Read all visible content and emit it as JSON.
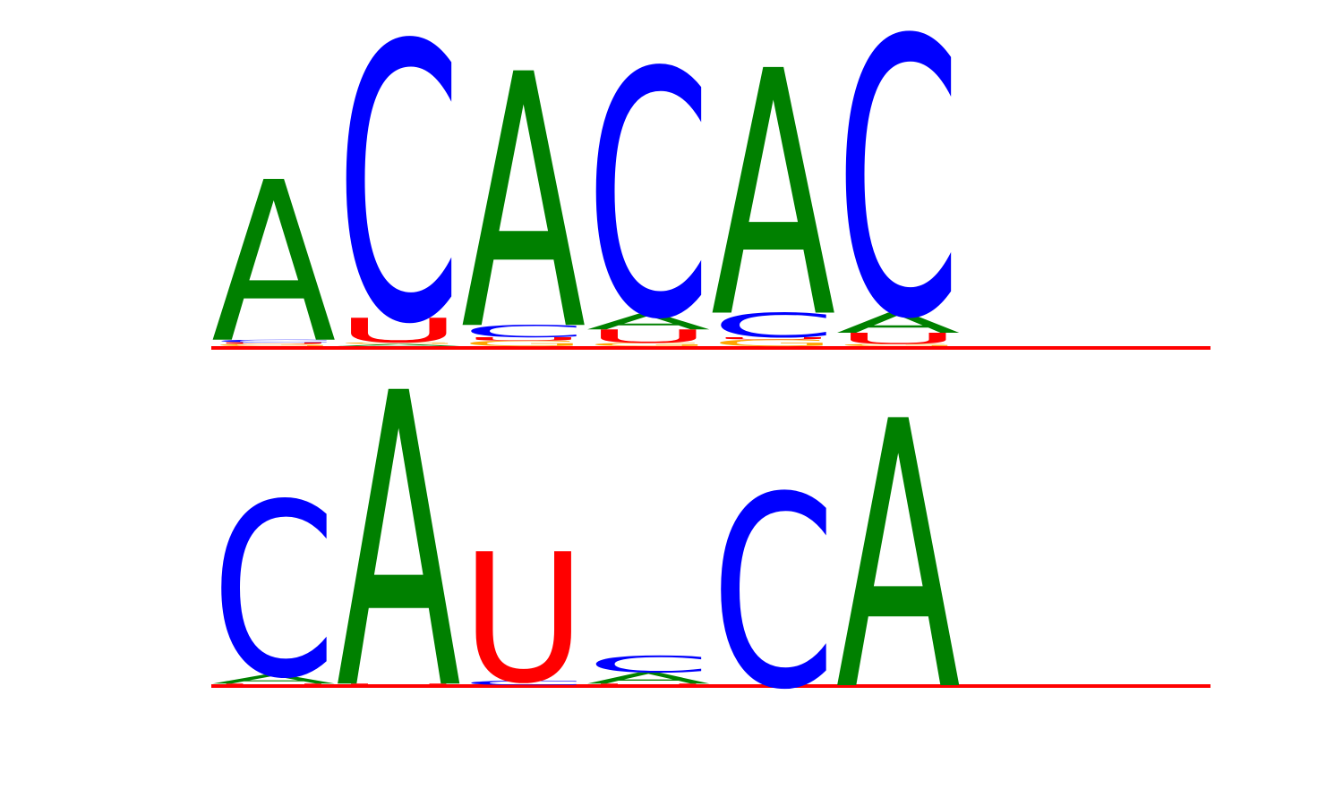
{
  "colors": {
    "A": "#008000",
    "C": "#0000ff",
    "G": "#ffa500",
    "U": "#ff0000"
  },
  "logos": [
    {
      "name": "motif-logo-top",
      "columns": [
        [
          {
            "letter": "G",
            "height": 0.01
          },
          {
            "letter": "U",
            "height": 0.007
          },
          {
            "letter": "C",
            "height": 0.012
          },
          {
            "letter": "A",
            "height": 0.72
          }
        ],
        [
          {
            "letter": "A",
            "height": 0.01
          },
          {
            "letter": "G",
            "height": 0.007
          },
          {
            "letter": "U",
            "height": 0.11
          },
          {
            "letter": "C",
            "height": 1.24
          }
        ],
        [
          {
            "letter": "G",
            "height": 0.025
          },
          {
            "letter": "U",
            "height": 0.015
          },
          {
            "letter": "C",
            "height": 0.055
          },
          {
            "letter": "A",
            "height": 1.14
          }
        ],
        [
          {
            "letter": "G",
            "height": 0.015
          },
          {
            "letter": "U",
            "height": 0.06
          },
          {
            "letter": "A",
            "height": 0.07
          },
          {
            "letter": "C",
            "height": 1.1
          }
        ],
        [
          {
            "letter": "G",
            "height": 0.03
          },
          {
            "letter": "U",
            "height": 0.01
          },
          {
            "letter": "C",
            "height": 0.11
          },
          {
            "letter": "A",
            "height": 1.1
          }
        ],
        [
          {
            "letter": "G",
            "height": 0.01
          },
          {
            "letter": "U",
            "height": 0.05
          },
          {
            "letter": "A",
            "height": 0.09
          },
          {
            "letter": "C",
            "height": 1.24
          }
        ]
      ]
    },
    {
      "name": "motif-logo-bottom",
      "columns": [
        [
          {
            "letter": "U",
            "height": 0.007
          },
          {
            "letter": "A",
            "height": 0.04
          },
          {
            "letter": "C",
            "height": 0.78
          }
        ],
        [
          {
            "letter": "U",
            "height": 0.007
          },
          {
            "letter": "A",
            "height": 1.32
          }
        ],
        [
          {
            "letter": "C",
            "height": 0.02
          },
          {
            "letter": "U",
            "height": 0.58
          }
        ],
        [
          {
            "letter": "U",
            "height": 0.007
          },
          {
            "letter": "A",
            "height": 0.05
          },
          {
            "letter": "C",
            "height": 0.075
          }
        ],
        [
          {
            "letter": "C",
            "height": 0.86
          }
        ],
        [
          {
            "letter": "A",
            "height": 1.2
          }
        ]
      ]
    }
  ]
}
